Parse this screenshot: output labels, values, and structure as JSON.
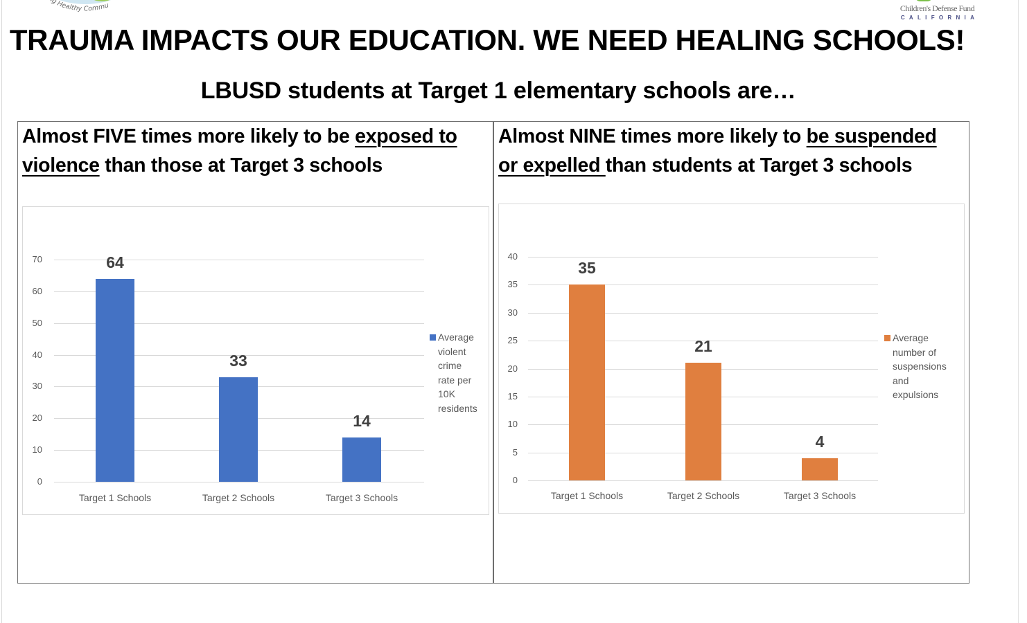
{
  "header": {
    "main_title": "TRAUMA IMPACTS OUR EDUCATION. WE NEED HEALING SCHOOLS!",
    "subtitle": "LBUSD students at Target 1 elementary schools are…",
    "logo_left_text": "…ng Healthy Commu…",
    "logo_right": {
      "name": "Children's Defense Fund",
      "region": "CALIFORNIA"
    }
  },
  "panels": [
    {
      "heading_parts": {
        "pre": "Almost FIVE times more likely to be ",
        "underline1": "exposed to",
        "underline2": "violence",
        "post": " than those at Target 3 schools"
      }
    },
    {
      "heading_parts": {
        "pre": "Almost NINE times more likely to ",
        "underline1": "be suspended",
        "underline2": "or expelled ",
        "post": "than students at Target 3 schools"
      }
    }
  ],
  "colors": {
    "blue_series": "#4472C4",
    "orange_series": "#E07F3F",
    "gridline": "#D9D9D9",
    "axis_text": "#595959",
    "data_label": "#404040"
  },
  "chart_data": [
    {
      "type": "bar",
      "title": "Almost FIVE times more likely to be exposed to violence than those at Target 3 schools",
      "categories": [
        "Target 1 Schools",
        "Target 2 Schools",
        "Target 3 Schools"
      ],
      "series": [
        {
          "name": "Average violent crime rate per 10K residents",
          "values": [
            64,
            33,
            14
          ],
          "color": "#4472C4"
        }
      ],
      "data_labels": [
        "64",
        "33",
        "14"
      ],
      "xlabel": "",
      "ylabel": "",
      "ylim": [
        0,
        70
      ],
      "yticks": [
        "0",
        "10",
        "20",
        "30",
        "40",
        "50",
        "60",
        "70"
      ],
      "grid": true,
      "legend_position": "right",
      "legend_lines": [
        "Average",
        "violent",
        "crime",
        "rate per",
        "10K",
        "residents"
      ]
    },
    {
      "type": "bar",
      "title": "Almost NINE times more likely to be suspended or expelled than students at Target 3 schools",
      "categories": [
        "Target 1 Schools",
        "Target 2 Schools",
        "Target 3 Schools"
      ],
      "series": [
        {
          "name": "Average number of suspensions and expulsions",
          "values": [
            35,
            21,
            4
          ],
          "color": "#E07F3F"
        }
      ],
      "data_labels": [
        "35",
        "21",
        "4"
      ],
      "xlabel": "",
      "ylabel": "",
      "ylim": [
        0,
        40
      ],
      "yticks": [
        "0",
        "5",
        "10",
        "15",
        "20",
        "25",
        "30",
        "35",
        "40"
      ],
      "grid": true,
      "legend_position": "right",
      "legend_lines": [
        "Average",
        "number of",
        "suspensions",
        "and",
        "expulsions"
      ]
    }
  ]
}
